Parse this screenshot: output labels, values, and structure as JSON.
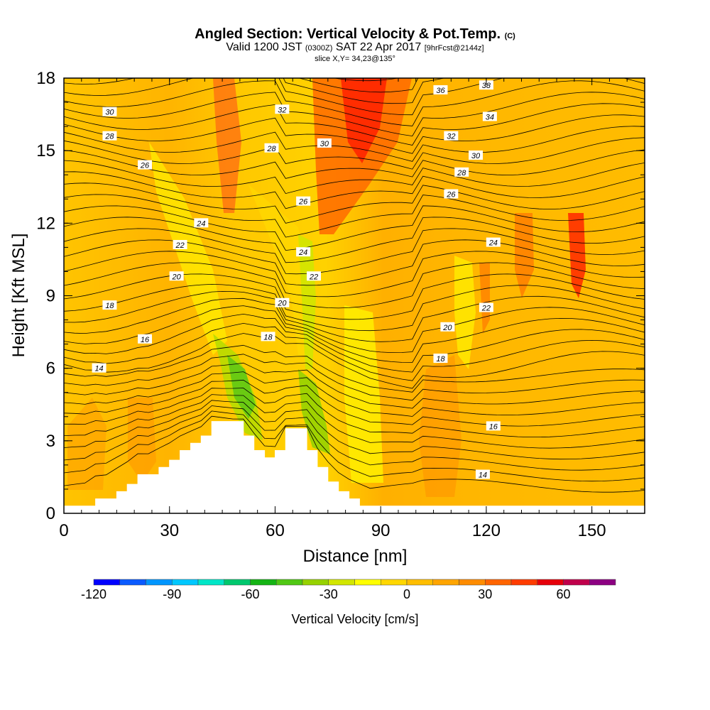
{
  "title": {
    "main": "Angled Section: Vertical Velocity & Pot.Temp.",
    "unit_tag": "(C)",
    "valid_prefix": "Valid 1200 JST",
    "utc": "(0300Z)",
    "valid_suffix": "SAT 22 Apr 2017",
    "forecast": "[9hrFcst@2144z]",
    "slice": "slice X,Y= 34,23@135°"
  },
  "chart_data": {
    "type": "heatmap",
    "xlabel": "Distance [nm]",
    "ylabel": "Height [Kft MSL]",
    "xlim": [
      0,
      165
    ],
    "ylim": [
      0,
      18
    ],
    "x_ticks": [
      "0",
      "30",
      "60",
      "90",
      "120",
      "150"
    ],
    "y_ticks": [
      "0",
      "3",
      "6",
      "9",
      "12",
      "15",
      "18"
    ],
    "colorbar": {
      "label": "Vertical Velocity [cm/s]",
      "ticks": [
        "-120",
        "-90",
        "-60",
        "-30",
        "0",
        "30",
        "60"
      ],
      "levels": [
        -120,
        -110,
        -100,
        -90,
        -80,
        -70,
        -60,
        -50,
        -40,
        -30,
        -20,
        -10,
        0,
        10,
        20,
        30,
        40,
        50,
        60,
        70,
        80
      ],
      "colors": [
        "#0000ff",
        "#0a5aff",
        "#0096ff",
        "#00c8ff",
        "#00e6c8",
        "#00c86e",
        "#14b414",
        "#50c814",
        "#96d200",
        "#d2e600",
        "#ffff00",
        "#ffd700",
        "#ffbe00",
        "#ffa500",
        "#ff8c00",
        "#ff6400",
        "#ff3c00",
        "#e6000a",
        "#c0004b",
        "#8c0082"
      ]
    },
    "terrain": [
      [
        0,
        0.3
      ],
      [
        9,
        0.3
      ],
      [
        9,
        0.6
      ],
      [
        15,
        0.6
      ],
      [
        15,
        0.9
      ],
      [
        18,
        0.9
      ],
      [
        18,
        1.2
      ],
      [
        21,
        1.2
      ],
      [
        21,
        1.6
      ],
      [
        27,
        1.6
      ],
      [
        27,
        1.9
      ],
      [
        30,
        1.9
      ],
      [
        30,
        2.2
      ],
      [
        33,
        2.2
      ],
      [
        33,
        2.6
      ],
      [
        36,
        2.6
      ],
      [
        36,
        2.9
      ],
      [
        39,
        2.9
      ],
      [
        39,
        3.2
      ],
      [
        42,
        3.2
      ],
      [
        42,
        3.8
      ],
      [
        51,
        3.8
      ],
      [
        51,
        3.2
      ],
      [
        54,
        3.2
      ],
      [
        54,
        2.6
      ],
      [
        57,
        2.6
      ],
      [
        57,
        2.3
      ],
      [
        60,
        2.3
      ],
      [
        60,
        2.6
      ],
      [
        63,
        2.6
      ],
      [
        63,
        3.5
      ],
      [
        69,
        3.5
      ],
      [
        69,
        2.6
      ],
      [
        72,
        2.6
      ],
      [
        72,
        1.9
      ],
      [
        75,
        1.9
      ],
      [
        75,
        1.3
      ],
      [
        78,
        1.3
      ],
      [
        78,
        0.9
      ],
      [
        81,
        0.9
      ],
      [
        81,
        0.6
      ],
      [
        84,
        0.6
      ],
      [
        84,
        0.3
      ],
      [
        165,
        0.3
      ]
    ],
    "contour_labels": [
      {
        "text": "30",
        "x": 13,
        "y": 16.6
      },
      {
        "text": "28",
        "x": 13,
        "y": 15.6
      },
      {
        "text": "26",
        "x": 23,
        "y": 14.4
      },
      {
        "text": "24",
        "x": 39,
        "y": 12.0
      },
      {
        "text": "22",
        "x": 33,
        "y": 11.1
      },
      {
        "text": "20",
        "x": 32,
        "y": 9.8
      },
      {
        "text": "18",
        "x": 13,
        "y": 8.6
      },
      {
        "text": "16",
        "x": 23,
        "y": 7.2
      },
      {
        "text": "14",
        "x": 10,
        "y": 6.0
      },
      {
        "text": "32",
        "x": 62,
        "y": 16.7
      },
      {
        "text": "28",
        "x": 59,
        "y": 15.1
      },
      {
        "text": "30",
        "x": 74,
        "y": 15.3
      },
      {
        "text": "26",
        "x": 68,
        "y": 12.9
      },
      {
        "text": "24",
        "x": 68,
        "y": 10.8
      },
      {
        "text": "22",
        "x": 71,
        "y": 9.8
      },
      {
        "text": "20",
        "x": 62,
        "y": 8.7
      },
      {
        "text": "18",
        "x": 58,
        "y": 7.3
      },
      {
        "text": "36",
        "x": 107,
        "y": 17.5
      },
      {
        "text": "38",
        "x": 120,
        "y": 17.7
      },
      {
        "text": "34",
        "x": 121,
        "y": 16.4
      },
      {
        "text": "32",
        "x": 110,
        "y": 15.6
      },
      {
        "text": "30",
        "x": 117,
        "y": 14.8
      },
      {
        "text": "28",
        "x": 113,
        "y": 14.1
      },
      {
        "text": "26",
        "x": 110,
        "y": 13.2
      },
      {
        "text": "24",
        "x": 122,
        "y": 11.2
      },
      {
        "text": "22",
        "x": 120,
        "y": 8.5
      },
      {
        "text": "20",
        "x": 109,
        "y": 7.7
      },
      {
        "text": "18",
        "x": 107,
        "y": 6.4
      },
      {
        "text": "16",
        "x": 122,
        "y": 3.6
      },
      {
        "text": "14",
        "x": 119,
        "y": 1.6
      }
    ]
  }
}
